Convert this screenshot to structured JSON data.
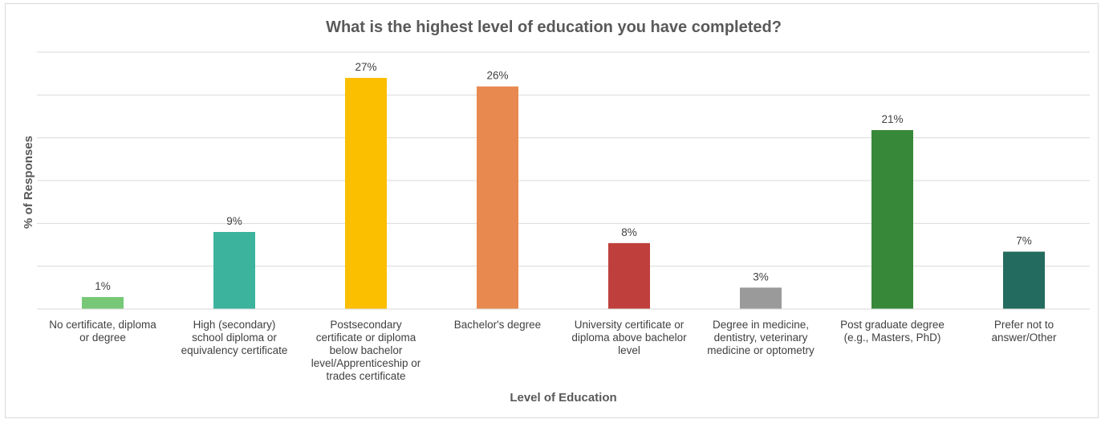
{
  "chart_data": {
    "type": "bar",
    "title": "What is the highest level of education you have completed?",
    "xlabel": "Level of Education",
    "ylabel": "% of Responses",
    "ylim": [
      0,
      30
    ],
    "grid": true,
    "legend": "none",
    "categories": [
      [
        "No certificate, diploma",
        "or degree"
      ],
      [
        "High (secondary)",
        "school diploma or",
        "equivalency certificate"
      ],
      [
        "Postsecondary",
        "certificate or diploma",
        "below bachelor",
        "level/Apprenticeship or",
        "trades certificate"
      ],
      [
        "Bachelor's degree"
      ],
      [
        "University certificate or",
        "diploma above bachelor",
        "level"
      ],
      [
        "Degree in medicine,",
        "dentistry, veterinary",
        "medicine or optometry"
      ],
      [
        "Post graduate degree",
        "(e.g., Masters, PhD)"
      ],
      [
        "Prefer not to",
        "answer/Other"
      ]
    ],
    "values": [
      1.4,
      9,
      27,
      26,
      7.7,
      2.5,
      20.9,
      6.7
    ],
    "data_labels": [
      "1%",
      "9%",
      "27%",
      "26%",
      "8%",
      "3%",
      "21%",
      "7%"
    ],
    "colors": [
      "#76c877",
      "#3cb39d",
      "#fbbf00",
      "#e8894f",
      "#bf3f3d",
      "#9a9a9a",
      "#378939",
      "#236b5e"
    ]
  }
}
